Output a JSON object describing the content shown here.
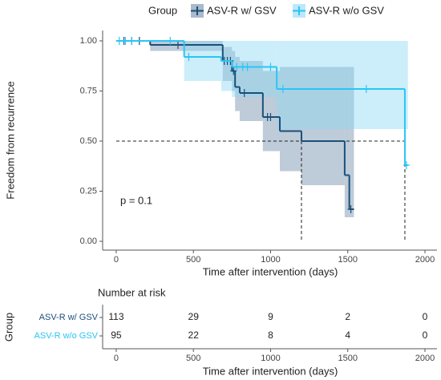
{
  "chart_data": {
    "type": "survival",
    "legend_title": "Group",
    "xlabel": "Time after intervention (days)",
    "ylabel": "Freedom from recurrence",
    "annotation": "p = 0.1",
    "xlim": [
      -88,
      2078
    ],
    "ylim": [
      -0.044,
      1.052
    ],
    "xticks": [
      0,
      500,
      1000,
      1500,
      2000
    ],
    "yticks": [
      {
        "value": 0,
        "label": "0.00"
      },
      {
        "value": 0.25,
        "label": "0.25"
      },
      {
        "value": 0.5,
        "label": "0.50"
      },
      {
        "value": 0.75,
        "label": "0.75"
      },
      {
        "value": 1,
        "label": "1.00"
      }
    ],
    "median_y": 0.5,
    "medians": [
      1200,
      1870
    ],
    "series": [
      {
        "name": "ASV-R w/ GSV",
        "color": "#1b4f7a",
        "band_color": "#6f8ca8",
        "x": [
          0,
          220,
          690,
          750,
          770,
          800,
          950,
          1060,
          1200,
          1480,
          1510,
          1540
        ],
        "values": [
          1,
          0.98,
          0.9,
          0.85,
          0.77,
          0.74,
          0.62,
          0.55,
          0.5,
          0.33,
          0.16,
          0.16
        ],
        "lower": [
          1,
          0.95,
          0.8,
          0.75,
          0.65,
          0.6,
          0.45,
          0.35,
          0.28,
          0.12,
          0.12,
          0.12
        ],
        "upper": [
          1,
          1,
          0.97,
          0.95,
          0.92,
          0.9,
          0.85,
          0.87,
          0.87,
          0.87,
          0.87,
          0.87
        ],
        "censor": [
          50,
          100,
          150,
          400,
          700,
          720,
          740,
          760,
          830,
          980,
          1000,
          1520
        ]
      },
      {
        "name": "ASV-R w/o GSV",
        "color": "#29c5f6",
        "band_color": "#8fd9f5",
        "x": [
          0,
          440,
          680,
          750,
          1040,
          1870,
          1890
        ],
        "values": [
          1,
          0.92,
          0.9,
          0.87,
          0.76,
          0.38,
          0.38
        ],
        "lower": [
          1,
          0.8,
          0.75,
          0.72,
          0.56,
          0.56,
          0.56
        ],
        "upper": [
          1,
          1,
          1,
          1,
          1,
          1,
          1
        ],
        "censor": [
          20,
          60,
          100,
          350,
          470,
          780,
          820,
          850,
          1000,
          1080,
          1620,
          1880
        ]
      }
    ],
    "risk_table": {
      "title": "Number at risk",
      "ylabel": "Group",
      "xlabel": "Time after intervention (days)",
      "xticks": [
        0,
        500,
        1000,
        1500,
        2000
      ],
      "rows": [
        {
          "name": "ASV-R w/ GSV",
          "color": "#1b4f7a",
          "values": [
            113,
            29,
            9,
            2,
            0
          ]
        },
        {
          "name": "ASV-R w/o GSV",
          "color": "#29c5f6",
          "values": [
            95,
            22,
            8,
            4,
            0
          ]
        }
      ]
    }
  }
}
